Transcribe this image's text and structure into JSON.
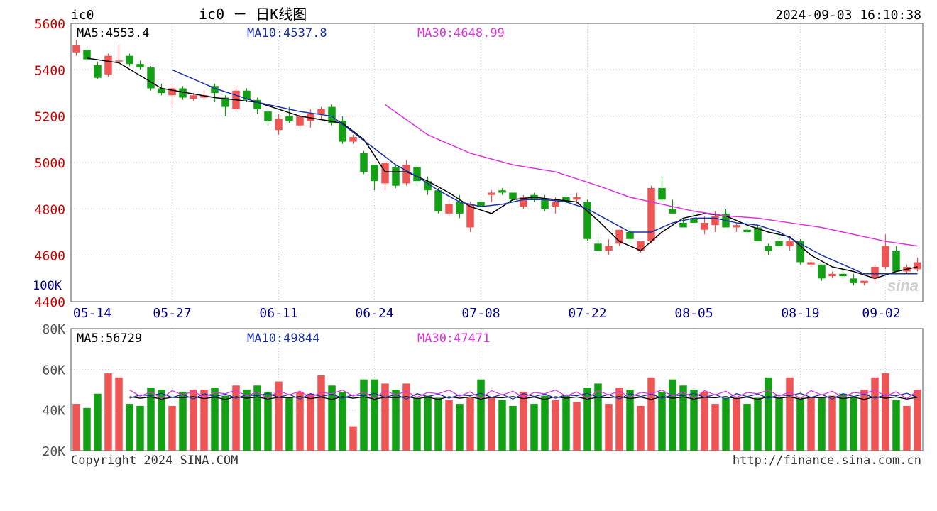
{
  "header": {
    "symbol": "ic0",
    "title": "ic0 － 日K线图",
    "timestamp": "2024-09-03 16:10:38"
  },
  "price_panel": {
    "ma_labels": {
      "ma5": "MA5:4553.4",
      "ma10": "MA10:4537.8",
      "ma30": "MA30:4648.99"
    },
    "y_ticks": [
      "5600",
      "5400",
      "5200",
      "5000",
      "4800",
      "4600",
      "4400"
    ],
    "volume_tick": "100K"
  },
  "volume_panel": {
    "ma_labels": {
      "ma5": "MA5:56729",
      "ma10": "MA10:49844",
      "ma30": "MA30:47471"
    },
    "y_ticks": [
      "80K",
      "60K",
      "40K",
      "20K"
    ]
  },
  "x_ticks": [
    "05-14",
    "05-27",
    "06-11",
    "06-24",
    "07-08",
    "07-22",
    "08-05",
    "08-19",
    "09-02"
  ],
  "footer": {
    "copyright": "Copyright 2024 SINA.COM",
    "url": "http://finance.sina.com.cn"
  },
  "watermark": "sina",
  "colors": {
    "up": "#ee5555",
    "down": "#14a014",
    "ma5": "#000000",
    "ma10": "#1a33aa",
    "ma30": "#dd33dd",
    "price_axis": "#cc0000",
    "axis_text": "#000088",
    "grid": "#c8c8c8"
  },
  "chart_data": [
    {
      "type": "candlestick",
      "title": "ic0 － 日K线图",
      "ylim": [
        4400,
        5600
      ],
      "x_tick_labels": [
        "05-14",
        "05-27",
        "06-11",
        "06-24",
        "07-08",
        "07-22",
        "08-05",
        "08-19",
        "09-02"
      ],
      "x_tick_bar_index": [
        0,
        9,
        19,
        28,
        38,
        48,
        58,
        68,
        76
      ],
      "series": [
        {
          "name": "OHLC",
          "ohlc": [
            [
              5475,
              5530,
              5460,
              5505
            ],
            [
              5485,
              5490,
              5440,
              5445
            ],
            [
              5420,
              5435,
              5360,
              5365
            ],
            [
              5380,
              5470,
              5370,
              5460
            ],
            [
              5440,
              5510,
              5430,
              5440
            ],
            [
              5460,
              5470,
              5415,
              5425
            ],
            [
              5425,
              5440,
              5400,
              5410
            ],
            [
              5410,
              5415,
              5310,
              5320
            ],
            [
              5320,
              5340,
              5290,
              5300
            ],
            [
              5290,
              5340,
              5240,
              5320
            ],
            [
              5320,
              5330,
              5270,
              5280
            ],
            [
              5275,
              5300,
              5265,
              5290
            ],
            [
              5280,
              5310,
              5270,
              5290
            ],
            [
              5330,
              5340,
              5260,
              5300
            ],
            [
              5280,
              5290,
              5200,
              5240
            ],
            [
              5230,
              5330,
              5220,
              5310
            ],
            [
              5310,
              5320,
              5260,
              5270
            ],
            [
              5270,
              5280,
              5210,
              5230
            ],
            [
              5220,
              5230,
              5160,
              5180
            ],
            [
              5140,
              5210,
              5120,
              5190
            ],
            [
              5200,
              5240,
              5170,
              5180
            ],
            [
              5160,
              5210,
              5150,
              5200
            ],
            [
              5180,
              5230,
              5150,
              5210
            ],
            [
              5210,
              5240,
              5190,
              5230
            ],
            [
              5240,
              5250,
              5160,
              5170
            ],
            [
              5180,
              5200,
              5080,
              5090
            ],
            [
              5090,
              5120,
              5080,
              5110
            ],
            [
              5040,
              5050,
              4950,
              4960
            ],
            [
              4990,
              4990,
              4880,
              4920
            ],
            [
              4910,
              5000,
              4880,
              5000
            ],
            [
              4980,
              4990,
              4890,
              4900
            ],
            [
              4910,
              5010,
              4900,
              4990
            ],
            [
              4980,
              4990,
              4900,
              4920
            ],
            [
              4920,
              4940,
              4860,
              4880
            ],
            [
              4880,
              4890,
              4780,
              4790
            ],
            [
              4780,
              4840,
              4770,
              4820
            ],
            [
              4830,
              4860,
              4760,
              4780
            ],
            [
              4720,
              4830,
              4700,
              4820
            ],
            [
              4830,
              4840,
              4800,
              4810
            ],
            [
              4860,
              4880,
              4830,
              4870
            ],
            [
              4880,
              4890,
              4860,
              4870
            ],
            [
              4870,
              4880,
              4820,
              4840
            ],
            [
              4810,
              4860,
              4800,
              4850
            ],
            [
              4860,
              4870,
              4830,
              4840
            ],
            [
              4840,
              4860,
              4790,
              4800
            ],
            [
              4810,
              4850,
              4780,
              4830
            ],
            [
              4850,
              4860,
              4820,
              4830
            ],
            [
              4840,
              4870,
              4820,
              4850
            ],
            [
              4830,
              4840,
              4660,
              4670
            ],
            [
              4650,
              4680,
              4620,
              4620
            ],
            [
              4620,
              4670,
              4600,
              4640
            ],
            [
              4650,
              4710,
              4640,
              4710
            ],
            [
              4700,
              4720,
              4650,
              4670
            ],
            [
              4620,
              4650,
              4610,
              4660
            ],
            [
              4660,
              4900,
              4650,
              4890
            ],
            [
              4890,
              4940,
              4830,
              4840
            ],
            [
              4800,
              4840,
              4780,
              4780
            ],
            [
              4740,
              4760,
              4720,
              4720
            ],
            [
              4760,
              4800,
              4740,
              4740
            ],
            [
              4710,
              4770,
              4690,
              4740
            ],
            [
              4730,
              4790,
              4700,
              4770
            ],
            [
              4780,
              4800,
              4720,
              4720
            ],
            [
              4720,
              4740,
              4700,
              4730
            ],
            [
              4710,
              4730,
              4690,
              4700
            ],
            [
              4720,
              4730,
              4660,
              4660
            ],
            [
              4640,
              4650,
              4600,
              4620
            ],
            [
              4660,
              4690,
              4640,
              4640
            ],
            [
              4640,
              4680,
              4620,
              4660
            ],
            [
              4660,
              4670,
              4560,
              4570
            ],
            [
              4560,
              4580,
              4550,
              4570
            ],
            [
              4560,
              4560,
              4490,
              4500
            ],
            [
              4510,
              4530,
              4500,
              4520
            ],
            [
              4520,
              4540,
              4500,
              4510
            ],
            [
              4500,
              4520,
              4470,
              4480
            ],
            [
              4480,
              4490,
              4470,
              4490
            ],
            [
              4500,
              4560,
              4480,
              4550
            ],
            [
              4550,
              4690,
              4540,
              4640
            ],
            [
              4620,
              4640,
              4530,
              4530
            ],
            [
              4530,
              4560,
              4520,
              4550
            ],
            [
              4540,
              4590,
              4530,
              4570
            ]
          ]
        },
        {
          "name": "MA5",
          "points": [
            [
              1,
              5450
            ],
            [
              4,
              5430
            ],
            [
              8,
              5320
            ],
            [
              13,
              5280
            ],
            [
              17,
              5260
            ],
            [
              21,
              5200
            ],
            [
              25,
              5170
            ],
            [
              27,
              5100
            ],
            [
              29,
              4960
            ],
            [
              31,
              4960
            ],
            [
              33,
              4920
            ],
            [
              35,
              4870
            ],
            [
              37,
              4810
            ],
            [
              39,
              4780
            ],
            [
              41,
              4840
            ],
            [
              43,
              4850
            ],
            [
              45,
              4840
            ],
            [
              47,
              4830
            ],
            [
              49,
              4750
            ],
            [
              51,
              4660
            ],
            [
              53,
              4620
            ],
            [
              55,
              4700
            ],
            [
              57,
              4760
            ],
            [
              59,
              4780
            ],
            [
              61,
              4770
            ],
            [
              63,
              4730
            ],
            [
              65,
              4700
            ],
            [
              67,
              4680
            ],
            [
              69,
              4600
            ],
            [
              71,
              4550
            ],
            [
              73,
              4530
            ],
            [
              75,
              4500
            ],
            [
              77,
              4530
            ],
            [
              79,
              4550
            ]
          ]
        },
        {
          "name": "MA10",
          "points": [
            [
              9,
              5400
            ],
            [
              13,
              5320
            ],
            [
              17,
              5260
            ],
            [
              21,
              5220
            ],
            [
              24,
              5200
            ],
            [
              26,
              5130
            ],
            [
              28,
              5060
            ],
            [
              30,
              4990
            ],
            [
              32,
              4940
            ],
            [
              34,
              4880
            ],
            [
              36,
              4830
            ],
            [
              38,
              4810
            ],
            [
              40,
              4820
            ],
            [
              42,
              4840
            ],
            [
              44,
              4840
            ],
            [
              46,
              4830
            ],
            [
              48,
              4800
            ],
            [
              50,
              4750
            ],
            [
              52,
              4700
            ],
            [
              54,
              4700
            ],
            [
              56,
              4740
            ],
            [
              58,
              4760
            ],
            [
              60,
              4760
            ],
            [
              62,
              4740
            ],
            [
              64,
              4730
            ],
            [
              66,
              4700
            ],
            [
              68,
              4650
            ],
            [
              70,
              4600
            ],
            [
              72,
              4560
            ],
            [
              74,
              4520
            ],
            [
              76,
              4520
            ],
            [
              79,
              4520
            ]
          ]
        },
        {
          "name": "MA30",
          "points": [
            [
              29,
              5250
            ],
            [
              33,
              5120
            ],
            [
              37,
              5040
            ],
            [
              41,
              4990
            ],
            [
              45,
              4960
            ],
            [
              49,
              4900
            ],
            [
              52,
              4850
            ],
            [
              55,
              4820
            ],
            [
              58,
              4790
            ],
            [
              61,
              4770
            ],
            [
              64,
              4760
            ],
            [
              67,
              4740
            ],
            [
              70,
              4720
            ],
            [
              73,
              4690
            ],
            [
              76,
              4660
            ],
            [
              79,
              4640
            ]
          ]
        }
      ]
    },
    {
      "type": "bar",
      "title": "",
      "ylim": [
        20000,
        80000
      ],
      "values": [
        43000,
        41000,
        48000,
        58000,
        56000,
        43000,
        42000,
        51000,
        50000,
        42000,
        49000,
        50000,
        50000,
        51000,
        47000,
        52000,
        50000,
        52000,
        49000,
        54000,
        46000,
        49000,
        48000,
        57000,
        52000,
        49000,
        32000,
        55000,
        55000,
        53000,
        50000,
        53000,
        46000,
        47000,
        46000,
        45000,
        43000,
        46000,
        55000,
        46000,
        45000,
        42000,
        49000,
        43000,
        47000,
        45000,
        47000,
        44000,
        51000,
        53000,
        43000,
        51000,
        50000,
        42000,
        56000,
        49000,
        55000,
        52000,
        50000,
        49000,
        43000,
        46000,
        46000,
        43000,
        46000,
        56000,
        46000,
        56000,
        46000,
        46000,
        46000,
        47000,
        48000,
        46000,
        50000,
        56000,
        58000,
        45000,
        42000,
        50000
      ],
      "up_down": "color follows candlestick",
      "series": [
        {
          "name": "MA5",
          "values_estimated": 46000
        },
        {
          "name": "MA10",
          "values_estimated": 47000
        },
        {
          "name": "MA30",
          "values_estimated": 48000
        }
      ]
    }
  ]
}
